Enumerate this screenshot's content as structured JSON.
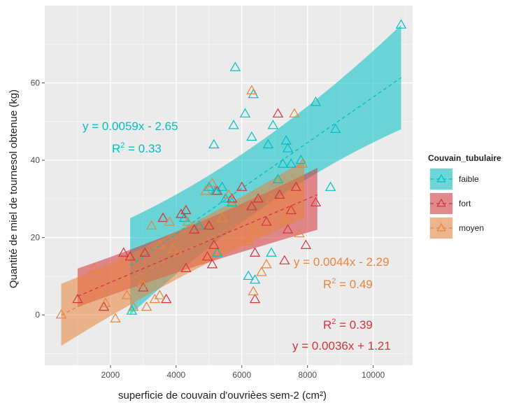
{
  "chart_data": {
    "type": "scatter",
    "xlabel": "superficie de couvain d'ouvrièes sem-2 (cm²)",
    "ylabel": "Quantité de miel de tournesol obtenue (kg)",
    "xlim": [
      0,
      11200
    ],
    "ylim": [
      -13,
      80
    ],
    "x_ticks": [
      2000,
      4000,
      6000,
      8000,
      10000
    ],
    "y_ticks": [
      0,
      20,
      40,
      60
    ],
    "grid": true,
    "legend": {
      "title": "Couvain_tubulaire",
      "position": "right"
    },
    "series": [
      {
        "name": "faible",
        "color": "#00BFC4",
        "fit": {
          "slope": 0.0059,
          "intercept": -2.65,
          "x_range": [
            2600,
            10850
          ],
          "band_start": [
            0,
            25
          ],
          "band_end": [
            48,
            75
          ]
        },
        "label_lines": [
          "y = 0.0059x - 2.65",
          "R2 = 0.33"
        ],
        "points": [
          [
            2650,
            1
          ],
          [
            5000,
            33
          ],
          [
            5200,
            32
          ],
          [
            5400,
            33
          ],
          [
            5150,
            44
          ],
          [
            5800,
            64
          ],
          [
            6100,
            52
          ],
          [
            5750,
            49
          ],
          [
            6300,
            46
          ],
          [
            6800,
            44
          ],
          [
            6950,
            49
          ],
          [
            7350,
            45
          ],
          [
            7400,
            43
          ],
          [
            7800,
            40
          ],
          [
            7100,
            35
          ],
          [
            7500,
            39
          ],
          [
            8250,
            55
          ],
          [
            8850,
            48
          ],
          [
            8700,
            33
          ],
          [
            10850,
            75
          ],
          [
            5500,
            30
          ],
          [
            4700,
            23
          ],
          [
            6200,
            10
          ],
          [
            6400,
            9
          ],
          [
            6900,
            16
          ],
          [
            5250,
            16
          ],
          [
            5700,
            29
          ],
          [
            4250,
            25
          ],
          [
            7250,
            39
          ],
          [
            6350,
            57
          ]
        ]
      },
      {
        "name": "fort",
        "color": "#D6333B",
        "fit": {
          "slope": 0.0036,
          "intercept": 1.21,
          "x_range": [
            1000,
            8300
          ],
          "band_start": [
            2,
            12
          ],
          "band_end": [
            22,
            38
          ]
        },
        "label_lines": [
          "R2 = 0.39",
          "y = 0.0036x + 1.21"
        ],
        "points": [
          [
            1000,
            4
          ],
          [
            1800,
            2
          ],
          [
            2400,
            16
          ],
          [
            2600,
            15
          ],
          [
            3050,
            16
          ],
          [
            3000,
            7
          ],
          [
            3600,
            25
          ],
          [
            4150,
            26
          ],
          [
            4300,
            27
          ],
          [
            4300,
            12
          ],
          [
            4550,
            22
          ],
          [
            4950,
            15
          ],
          [
            5100,
            13
          ],
          [
            5150,
            18
          ],
          [
            5000,
            23
          ],
          [
            5250,
            32
          ],
          [
            5700,
            30
          ],
          [
            6000,
            33
          ],
          [
            6300,
            28
          ],
          [
            6500,
            30
          ],
          [
            6750,
            24
          ],
          [
            7100,
            52
          ],
          [
            7150,
            31
          ],
          [
            7300,
            14
          ],
          [
            7400,
            22
          ],
          [
            7500,
            27
          ],
          [
            7650,
            33
          ],
          [
            7950,
            18
          ],
          [
            8250,
            29
          ],
          [
            6400,
            4
          ],
          [
            3700,
            4
          ],
          [
            6400,
            16
          ]
        ]
      },
      {
        "name": "moyen",
        "color": "#E8843C",
        "fit": {
          "slope": 0.0044,
          "intercept": -2.29,
          "x_range": [
            500,
            7900
          ],
          "band_start": [
            -8,
            8
          ],
          "band_end": [
            25,
            40
          ]
        },
        "label_lines": [
          "y = 0.0044x - 2.29",
          "R2 = 0.49"
        ],
        "points": [
          [
            500,
            0
          ],
          [
            1500,
            12
          ],
          [
            1850,
            3
          ],
          [
            2150,
            -1
          ],
          [
            2500,
            5
          ],
          [
            2700,
            2
          ],
          [
            2950,
            8
          ],
          [
            3100,
            2
          ],
          [
            3350,
            4
          ],
          [
            3500,
            5
          ],
          [
            3500,
            18
          ],
          [
            3800,
            24
          ],
          [
            3250,
            23
          ],
          [
            4350,
            24
          ],
          [
            4900,
            32
          ],
          [
            5100,
            34
          ],
          [
            5400,
            25
          ],
          [
            5600,
            31
          ],
          [
            6200,
            19
          ],
          [
            6350,
            22
          ],
          [
            6300,
            58
          ],
          [
            6600,
            11
          ],
          [
            6750,
            13
          ],
          [
            6900,
            30
          ],
          [
            7600,
            52
          ],
          [
            7750,
            21
          ],
          [
            7850,
            39
          ],
          [
            7300,
            25
          ],
          [
            3900,
            17
          ],
          [
            6350,
            6
          ]
        ]
      }
    ]
  }
}
